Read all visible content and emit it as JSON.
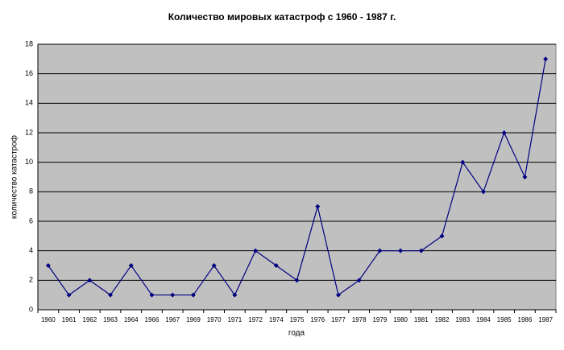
{
  "chart_data": {
    "type": "line",
    "title": "Количество мировых катастроф с 1960 - 1987 г.",
    "x_label": "года",
    "y_label": "количество катастроф",
    "categories": [
      "1960",
      "1961",
      "1962",
      "1963",
      "1964",
      "1966",
      "1967",
      "1969",
      "1970",
      "1971",
      "1972",
      "1974",
      "1975",
      "1976",
      "1977",
      "1978",
      "1979",
      "1980",
      "1981",
      "1982",
      "1983",
      "1984",
      "1985",
      "1986",
      "1987"
    ],
    "series": [
      {
        "name": "количество катастроф",
        "color": "#000080",
        "values": [
          3,
          1,
          2,
          1,
          3,
          1,
          1,
          1,
          3,
          1,
          4,
          3,
          2,
          7,
          1,
          2,
          4,
          4,
          4,
          5,
          10,
          8,
          12,
          9,
          17
        ]
      }
    ],
    "ylim": [
      0,
      18
    ],
    "yticks": [
      0,
      2,
      4,
      6,
      8,
      10,
      12,
      14,
      16,
      18
    ],
    "grid": true
  }
}
